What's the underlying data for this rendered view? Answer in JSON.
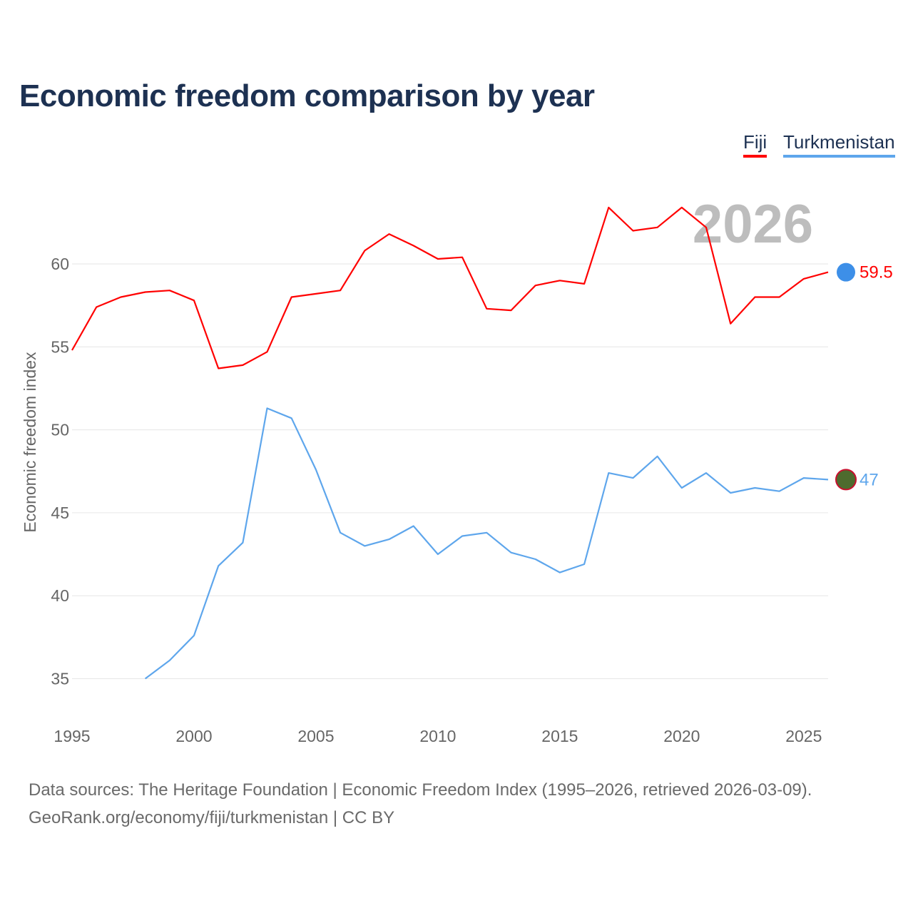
{
  "title": "Economic freedom comparison by year",
  "legend": [
    {
      "label": "Fiji",
      "color": "#ff0000"
    },
    {
      "label": "Turkmenistan",
      "color": "#5ea6ec"
    }
  ],
  "year_watermark": "2026",
  "source_line1": "Data sources: The Heritage Foundation | Economic Freedom Index (1995–2026, retrieved 2026-03-09).",
  "source_line2": "GeoRank.org/economy/fiji/turkmenistan | CC BY",
  "chart_data": {
    "type": "line",
    "title": "Economic freedom comparison by year",
    "xlabel": "",
    "ylabel": "Economic freedom index",
    "xlim": [
      1995,
      2026
    ],
    "ylim": [
      33,
      65
    ],
    "x_ticks": [
      1995,
      2000,
      2005,
      2010,
      2015,
      2020,
      2025
    ],
    "y_ticks": [
      35,
      40,
      45,
      50,
      55,
      60
    ],
    "grid": true,
    "legend_position": "top-right",
    "series": [
      {
        "name": "Fiji",
        "color": "#ff0000",
        "end_label": "59.5",
        "x": [
          1995,
          1996,
          1997,
          1998,
          1999,
          2000,
          2001,
          2002,
          2003,
          2004,
          2005,
          2006,
          2007,
          2008,
          2009,
          2010,
          2011,
          2012,
          2013,
          2014,
          2015,
          2016,
          2017,
          2018,
          2019,
          2020,
          2021,
          2022,
          2023,
          2024,
          2025,
          2026
        ],
        "values": [
          54.8,
          57.4,
          58.0,
          58.3,
          58.4,
          57.8,
          53.7,
          53.9,
          54.7,
          58.0,
          58.2,
          58.4,
          60.8,
          61.8,
          61.1,
          60.3,
          60.4,
          57.3,
          57.2,
          58.7,
          59.0,
          58.8,
          63.4,
          62.0,
          62.2,
          63.4,
          62.2,
          56.4,
          58.0,
          58.0,
          59.1,
          59.5
        ]
      },
      {
        "name": "Turkmenistan",
        "color": "#5ea6ec",
        "end_label": "47",
        "x": [
          1998,
          1999,
          2000,
          2001,
          2002,
          2003,
          2004,
          2005,
          2006,
          2007,
          2008,
          2009,
          2010,
          2011,
          2012,
          2013,
          2014,
          2015,
          2016,
          2017,
          2018,
          2019,
          2020,
          2021,
          2022,
          2023,
          2024,
          2025,
          2026
        ],
        "values": [
          35.0,
          36.1,
          37.6,
          41.8,
          43.2,
          51.3,
          50.7,
          47.6,
          43.8,
          43.0,
          43.4,
          44.2,
          42.5,
          43.6,
          43.8,
          42.6,
          42.2,
          41.4,
          41.9,
          47.4,
          47.1,
          48.4,
          46.5,
          47.4,
          46.2,
          46.5,
          46.3,
          47.1,
          47.0
        ]
      }
    ]
  }
}
